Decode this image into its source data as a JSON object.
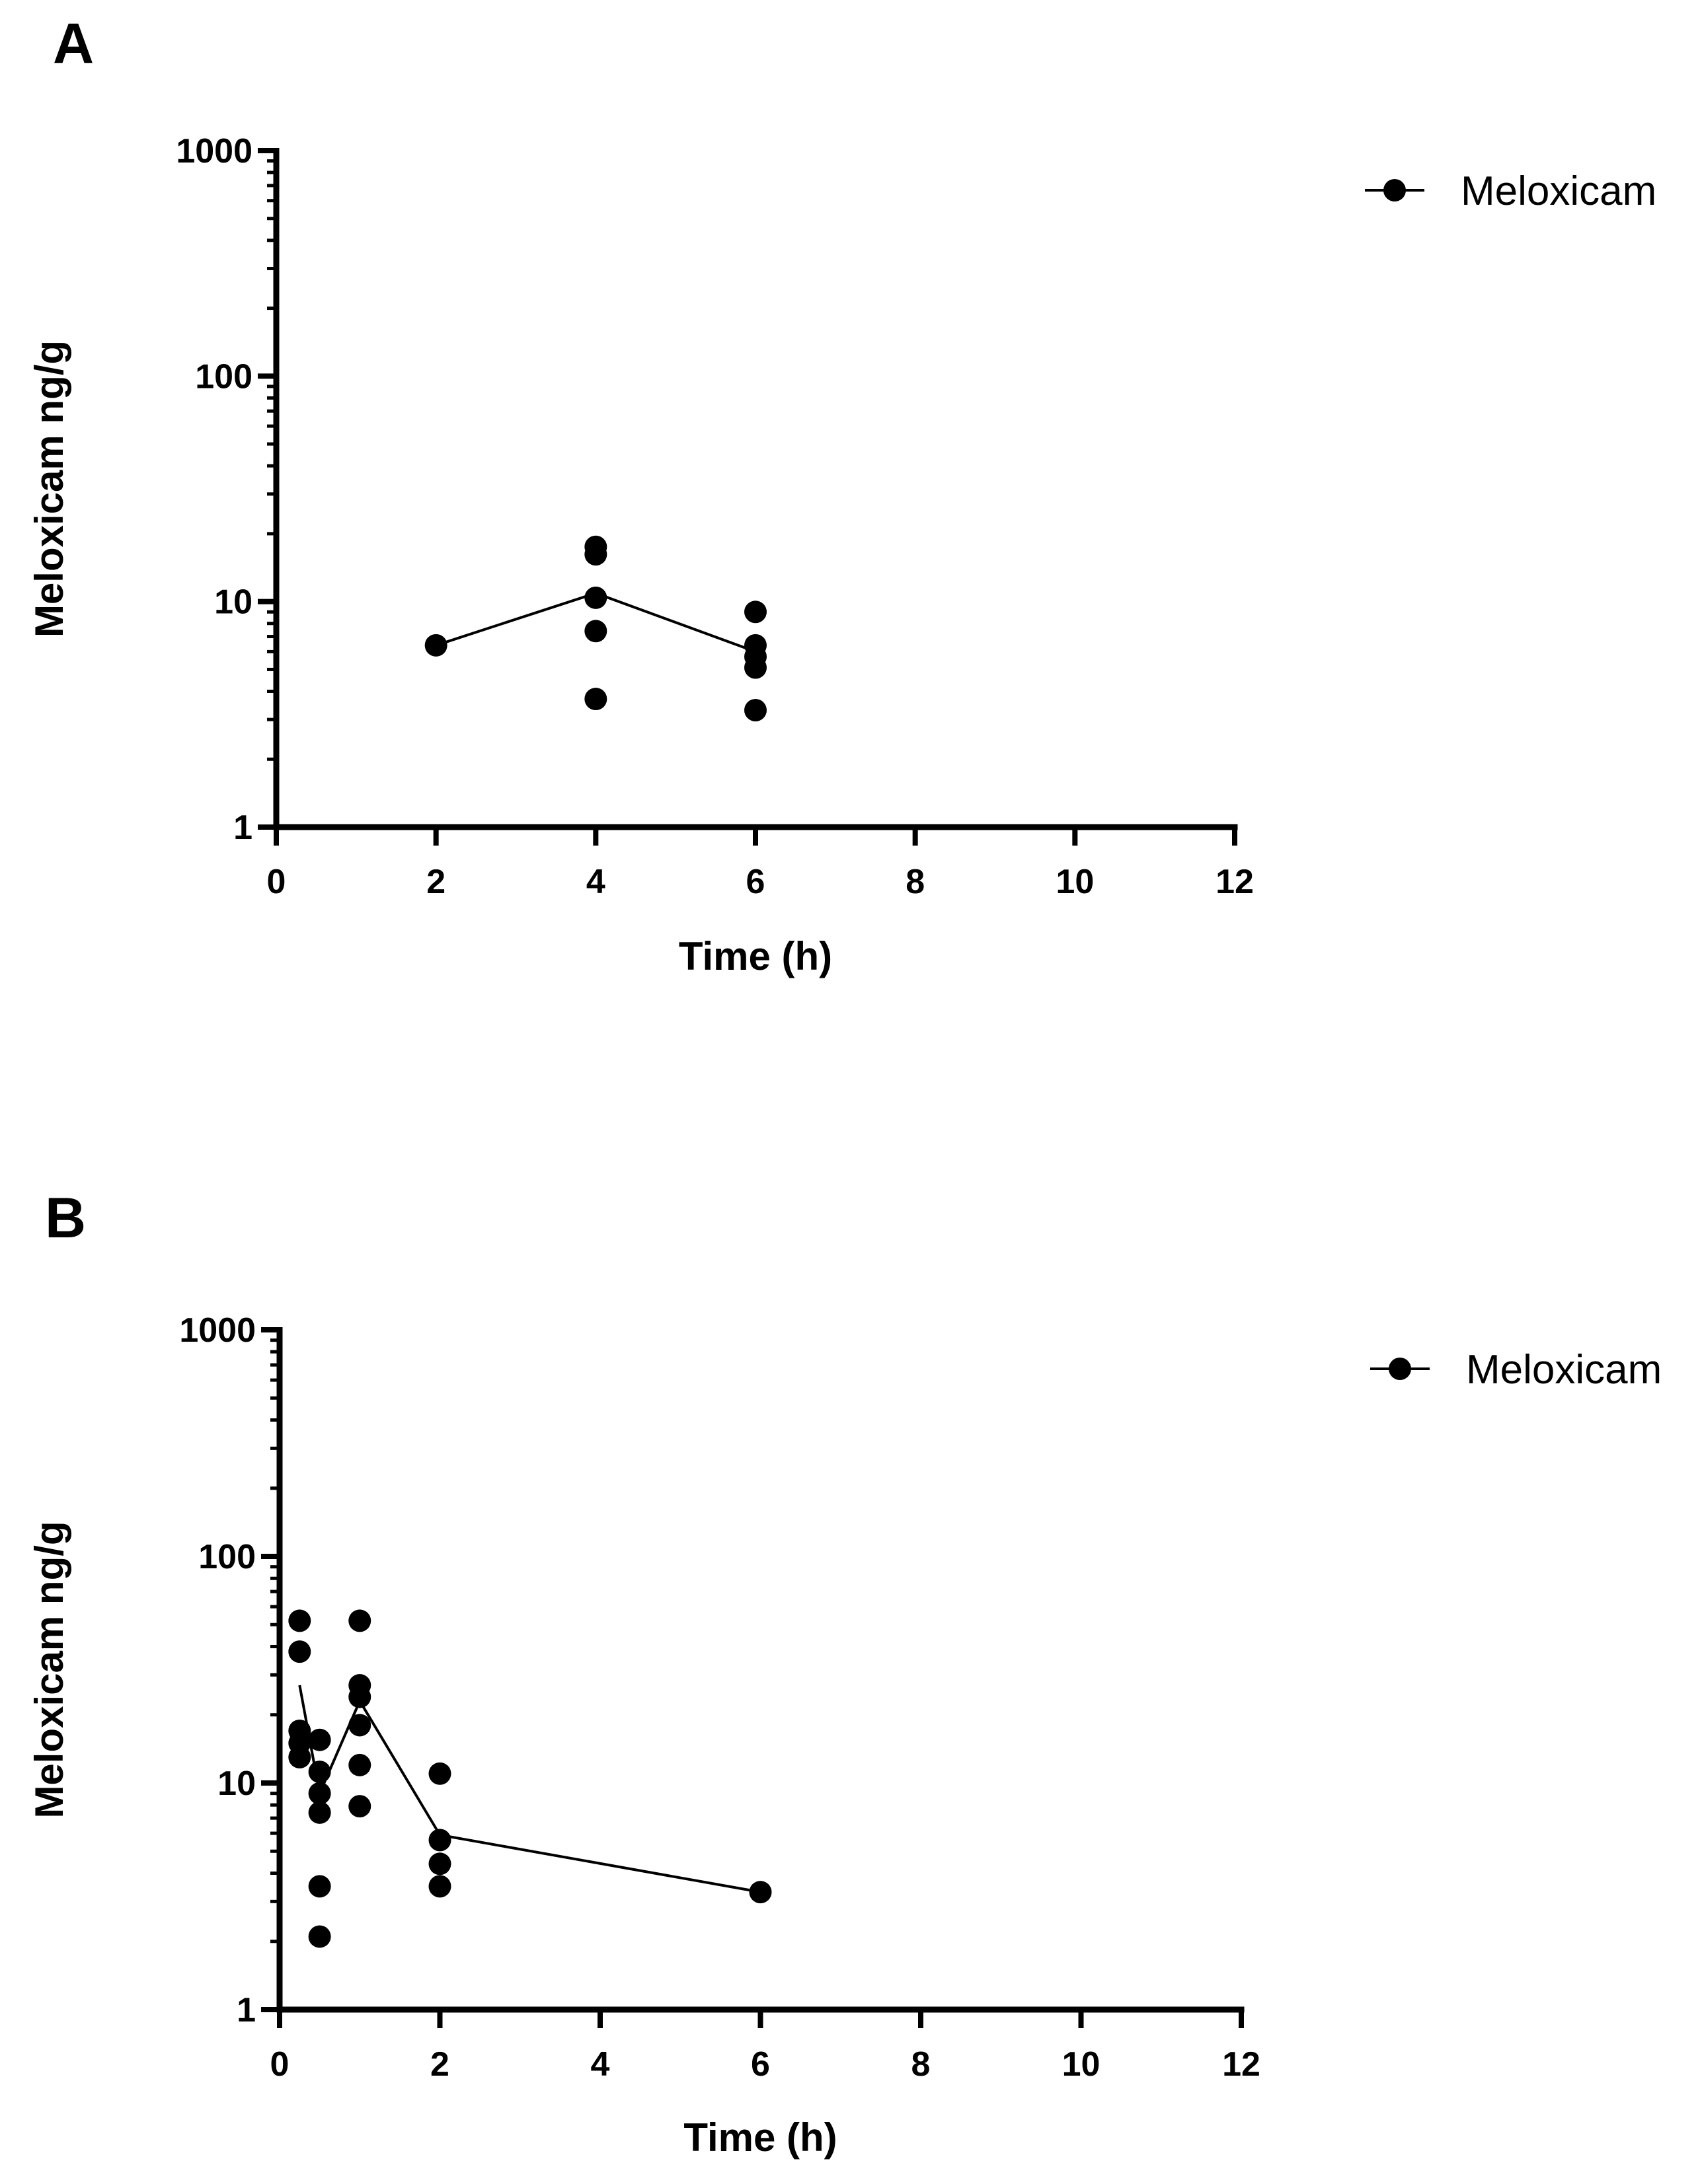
{
  "chart_data": [
    {
      "panel_label": "A",
      "type": "scatter",
      "xlabel": "Time (h)",
      "ylabel": "Meloxicam ng/g",
      "xlim": [
        0,
        12
      ],
      "xticks": [
        0,
        2,
        4,
        6,
        8,
        10,
        12
      ],
      "yscale": "log",
      "ylim": [
        1,
        1000
      ],
      "yticks": [
        1,
        10,
        100,
        1000
      ],
      "legend": {
        "label": "Meloxicam",
        "position": "top-right"
      },
      "series": [
        {
          "name": "Meloxicam",
          "points": [
            {
              "x": 2,
              "y": 6.4
            },
            {
              "x": 4,
              "y": 17.5
            },
            {
              "x": 4,
              "y": 16.2
            },
            {
              "x": 4,
              "y": 10.4
            },
            {
              "x": 4,
              "y": 7.4
            },
            {
              "x": 4,
              "y": 3.7
            },
            {
              "x": 6,
              "y": 9.0
            },
            {
              "x": 6,
              "y": 6.4
            },
            {
              "x": 6,
              "y": 5.7
            },
            {
              "x": 6,
              "y": 5.1
            },
            {
              "x": 6,
              "y": 3.3
            }
          ],
          "mean_line": [
            {
              "x": 2,
              "y": 6.4
            },
            {
              "x": 4,
              "y": 10.9
            },
            {
              "x": 6,
              "y": 6.0
            }
          ]
        }
      ]
    },
    {
      "panel_label": "B",
      "type": "scatter",
      "xlabel": "Time (h)",
      "ylabel": "Meloxicam ng/g",
      "xlim": [
        0,
        12
      ],
      "xticks": [
        0,
        2,
        4,
        6,
        8,
        10,
        12
      ],
      "xtick_labels": [
        "0",
        "2",
        "4",
        "6",
        "8",
        "10",
        "12"
      ],
      "yscale": "log",
      "ylim": [
        1,
        1000
      ],
      "yticks": [
        1,
        10,
        100,
        1000
      ],
      "legend": {
        "label": "Meloxicam",
        "position": "top-right"
      },
      "series": [
        {
          "name": "Meloxicam",
          "points": [
            {
              "x": 0.25,
              "y": 52
            },
            {
              "x": 0.25,
              "y": 38
            },
            {
              "x": 0.25,
              "y": 17
            },
            {
              "x": 0.25,
              "y": 15
            },
            {
              "x": 0.25,
              "y": 13
            },
            {
              "x": 0.5,
              "y": 15.5
            },
            {
              "x": 0.5,
              "y": 11.2
            },
            {
              "x": 0.5,
              "y": 9.0
            },
            {
              "x": 0.5,
              "y": 7.4
            },
            {
              "x": 0.5,
              "y": 3.5
            },
            {
              "x": 0.5,
              "y": 2.1
            },
            {
              "x": 1,
              "y": 52
            },
            {
              "x": 1,
              "y": 27
            },
            {
              "x": 1,
              "y": 24
            },
            {
              "x": 1,
              "y": 18
            },
            {
              "x": 1,
              "y": 12
            },
            {
              "x": 1,
              "y": 7.9
            },
            {
              "x": 2,
              "y": 11
            },
            {
              "x": 2,
              "y": 5.6
            },
            {
              "x": 2,
              "y": 4.4
            },
            {
              "x": 2,
              "y": 3.5
            },
            {
              "x": 6,
              "y": 3.3
            }
          ],
          "mean_line": [
            {
              "x": 0.25,
              "y": 27
            },
            {
              "x": 0.5,
              "y": 9.0
            },
            {
              "x": 1,
              "y": 23
            },
            {
              "x": 2,
              "y": 5.9
            },
            {
              "x": 6,
              "y": 3.3
            }
          ]
        }
      ]
    }
  ]
}
